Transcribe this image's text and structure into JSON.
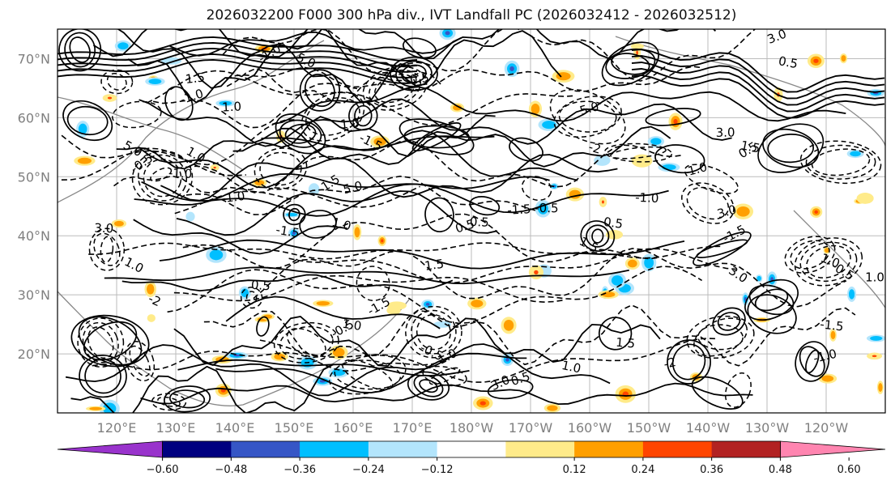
{
  "title": "2026032200 F000 300 hPa div., IVT Landfall PC (2026032412 - 2026032512)",
  "map": {
    "lat_labels": [
      "70°N",
      "60°N",
      "50°N",
      "40°N",
      "30°N",
      "20°N"
    ],
    "lat_values": [
      70,
      60,
      50,
      40,
      30,
      20
    ],
    "lon_labels": [
      "120°E",
      "130°E",
      "140°E",
      "150°E",
      "160°E",
      "170°E",
      "180°W",
      "170°W",
      "160°W",
      "150°W",
      "140°W",
      "130°W",
      "120°W"
    ],
    "lon_values": [
      120,
      130,
      140,
      150,
      160,
      170,
      180,
      190,
      200,
      210,
      220,
      230,
      240
    ],
    "lat_range": [
      10,
      75
    ],
    "lon_range": [
      110,
      250
    ],
    "contour_labels": [
      "0.5",
      "-0.5",
      "1.0",
      "-1.0",
      "1.5",
      "-1.5",
      "5.0",
      "3.0",
      "-2"
    ],
    "grid": true,
    "coastlines": true
  },
  "colorbar": {
    "colors": [
      "#9933cc",
      "#000080",
      "#3656c6",
      "#00bfff",
      "#b3e5fc",
      "#ffffff",
      "#ffeb8a",
      "#ff9f00",
      "#ff4500",
      "#b22222",
      "#ff85b0"
    ],
    "tick_labels": [
      "−0.60",
      "−0.48",
      "−0.36",
      "−0.24",
      "−0.12",
      "0.12",
      "0.24",
      "0.36",
      "0.48",
      "0.60"
    ],
    "boundaries": [
      -0.6,
      -0.48,
      -0.36,
      -0.24,
      -0.12,
      0.12,
      0.24,
      0.36,
      0.48,
      0.6
    ],
    "extend": "both"
  }
}
